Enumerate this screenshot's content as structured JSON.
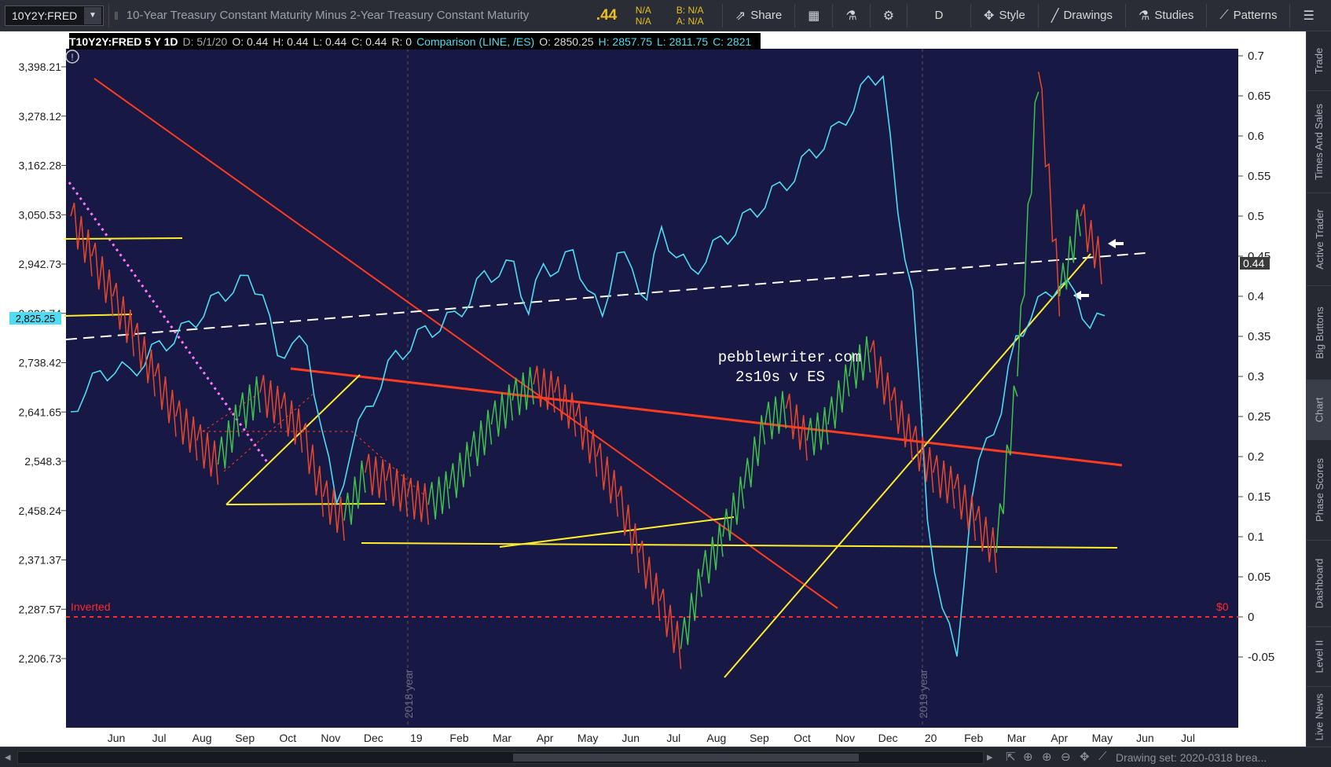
{
  "toolbar": {
    "symbol": "10Y2Y:FRED",
    "description": "10-Year Treasury Constant Maturity Minus 2-Year Treasury Constant Maturity",
    "last": ".44",
    "bid_label": "N/A",
    "ask_label": "N/A",
    "b_label": "B: N/A",
    "a_label": "A: N/A",
    "share": "Share",
    "period": "D",
    "style": "Style",
    "drawings": "Drawings",
    "studies": "Studies",
    "patterns": "Patterns"
  },
  "header": {
    "title": "T10Y2Y:FRED 5 Y 1D",
    "date": "D: 5/1/20",
    "open": "O: 0.44",
    "high": "H: 0.44",
    "low": "L: 0.44",
    "close": "C: 0.44",
    "r": "R: 0",
    "comparison": "Comparison (LINE, /ES)",
    "cmp_open": "O: 2850.25",
    "cmp_high": "H: 2857.75",
    "cmp_low": "L: 2811.75",
    "cmp_close": "C: 2821"
  },
  "right_rail": [
    "Trade",
    "Times And Sales",
    "Active Trader",
    "Big Buttons",
    "Chart",
    "Phase Scores",
    "Dashboard",
    "Level II",
    "Live News"
  ],
  "chart_data": {
    "type": "line",
    "left_axis_ticks": [
      "3,398.21",
      "3,278.12",
      "3,162.28",
      "3,050.53",
      "2,942.73",
      "2,836.74",
      "2,738.42",
      "2,641.65",
      "2,548.3",
      "2,458.24",
      "2,371.37",
      "2,287.57",
      "2,206.73"
    ],
    "left_axis_current": "2,825.25",
    "right_axis_ticks": [
      "0.7",
      "0.65",
      "0.6",
      "0.55",
      "0.5",
      "0.45",
      "0.4",
      "0.35",
      "0.3",
      "0.25",
      "0.2",
      "0.15",
      "0.1",
      "0.05",
      "0",
      "-0.05"
    ],
    "right_axis_current": "0.44",
    "x_ticks": [
      "Jun",
      "Jul",
      "Aug",
      "Sep",
      "Oct",
      "Nov",
      "Dec",
      "19",
      "Feb",
      "Mar",
      "Apr",
      "May",
      "Jun",
      "Jul",
      "Aug",
      "Sep",
      "Oct",
      "Nov",
      "Dec",
      "20",
      "Feb",
      "Mar",
      "Apr",
      "May",
      "Jun",
      "Jul"
    ],
    "year_markers": [
      "2018 year",
      "2019 year"
    ],
    "annotations": [
      "pebblewriter.com",
      "2s10s v ES",
      "Inverted",
      "$0"
    ],
    "colors": {
      "background": "#171844",
      "es": "#4fdcf2",
      "spread_up": "#3fc34a",
      "spread_down": "#e8472b",
      "trend_red": "#ff3b20",
      "trend_yellow": "#ffee2e",
      "dashed_white": "#ffffff",
      "inverted": "#ff2b2b"
    },
    "series": [
      {
        "name": "/ES",
        "values_x": [
          0,
          10,
          20,
          30,
          40,
          50,
          60,
          70,
          80,
          90,
          100,
          110,
          120,
          130,
          140,
          150,
          160,
          170,
          180,
          190,
          200,
          210,
          220,
          230,
          240,
          250,
          260,
          270,
          280,
          290,
          300,
          310,
          320,
          330,
          340,
          350,
          360,
          370,
          380,
          390,
          400,
          410,
          420,
          430,
          440,
          450,
          460,
          470,
          480,
          490,
          500,
          510,
          520,
          530,
          540,
          550,
          560,
          570,
          580,
          590,
          600,
          610,
          620,
          630,
          640,
          650,
          660,
          670,
          680,
          690,
          700
        ],
        "values": [
          2630,
          2690,
          2710,
          2730,
          2715,
          2745,
          2770,
          2790,
          2810,
          2845,
          2870,
          2895,
          2905,
          2890,
          2740,
          2790,
          2760,
          2620,
          2460,
          2580,
          2640,
          2700,
          2750,
          2775,
          2800,
          2815,
          2830,
          2870,
          2915,
          2930,
          2935,
          2850,
          2930,
          2940,
          2960,
          2900,
          2820,
          2980,
          2920,
          2880,
          3010,
          2970,
          2920,
          2960,
          2990,
          3020,
          3050,
          3080,
          3110,
          3140,
          3185,
          3215,
          3250,
          3305,
          3360,
          3390,
          3040,
          2900,
          2430,
          2300,
          2200,
          2490,
          2580,
          2650,
          2780,
          2840,
          2870,
          2910,
          2870,
          2821,
          2821
        ]
      },
      {
        "name": "10Y2Y",
        "values": [
          0.5,
          0.45,
          0.4,
          0.35,
          0.3,
          0.25,
          0.22,
          0.19,
          0.25,
          0.28,
          0.26,
          0.23,
          0.15,
          0.12,
          0.18,
          0.17,
          0.15,
          0.14,
          0.16,
          0.2,
          0.24,
          0.27,
          0.29,
          0.28,
          0.25,
          0.2,
          0.15,
          0.08,
          0.02,
          -0.04,
          0.05,
          0.1,
          0.16,
          0.24,
          0.26,
          0.22,
          0.24,
          0.3,
          0.33,
          0.27,
          0.22,
          0.18,
          0.16,
          0.12,
          0.08,
          0.3,
          0.68,
          0.4,
          0.5,
          0.44
        ]
      }
    ]
  }
}
